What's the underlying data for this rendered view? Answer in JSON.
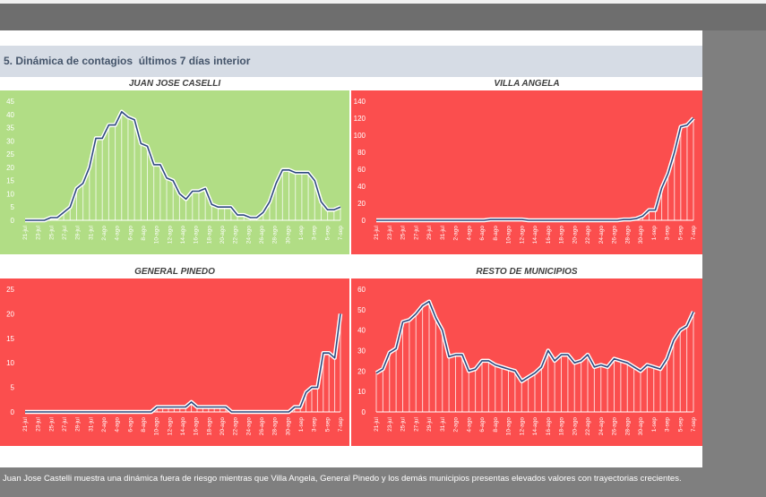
{
  "section_title": "5. Dinámica de contagios  últimos 7 días interior",
  "footer_text": "Juan Jose Castelli muestra una dinámica fuera de riesgo mientras que Villa Angela, General Pinedo y los demás municipios presentas elevados valores con trayectorias crecientes.",
  "colors": {
    "green_panel": "#b1dd85",
    "red_panel": "#fb4e4e",
    "line": "#2f4a7f",
    "line_glow": "#ffffff"
  },
  "chart_data": [
    {
      "type": "area",
      "title": "JUAN JOSE CASELLI",
      "background": "#b1dd85",
      "ylim": [
        0,
        45
      ],
      "yticks": [
        0,
        5,
        10,
        15,
        20,
        25,
        30,
        35,
        40,
        45
      ],
      "xticks": [
        "21-jul",
        "23-jul",
        "25-jul",
        "27-jul",
        "29-jul",
        "31-jul",
        "2-ago",
        "4-ago",
        "6-ago",
        "8-ago",
        "10-ago",
        "12-ago",
        "14-ago",
        "16-ago",
        "18-ago",
        "20-ago",
        "22-ago",
        "24-ago",
        "26-ago",
        "28-ago",
        "30-ago",
        "1-sep",
        "3-sep",
        "5-sep",
        "7-sep"
      ],
      "values": [
        0,
        0,
        0,
        0,
        1,
        1,
        3,
        5,
        12,
        14,
        20,
        31,
        31,
        36,
        36,
        41,
        39,
        38,
        29,
        28,
        21,
        21,
        16,
        15,
        10,
        8,
        11,
        11,
        12,
        6,
        5,
        5,
        5,
        2,
        2,
        1,
        1,
        3,
        7,
        14,
        19,
        19,
        18,
        18,
        18,
        15,
        7,
        4,
        4,
        5
      ]
    },
    {
      "type": "area",
      "title": "VILLA ANGELA",
      "background": "#fb4e4e",
      "ylim": [
        0,
        140
      ],
      "yticks": [
        0,
        20,
        40,
        60,
        80,
        100,
        120,
        140
      ],
      "xticks": [
        "21-jul",
        "23-jul",
        "25-jul",
        "27-jul",
        "29-jul",
        "31-jul",
        "2-ago",
        "4-ago",
        "6-ago",
        "8-ago",
        "10-ago",
        "12-ago",
        "14-ago",
        "16-ago",
        "18-ago",
        "20-ago",
        "22-ago",
        "24-ago",
        "26-ago",
        "28-ago",
        "30-ago",
        "1-sep",
        "3-sep",
        "5-sep",
        "7-sep"
      ],
      "values": [
        0,
        0,
        0,
        0,
        0,
        0,
        0,
        0,
        0,
        0,
        0,
        0,
        0,
        0,
        0,
        0,
        0,
        0,
        1,
        1,
        1,
        1,
        1,
        1,
        0,
        0,
        0,
        0,
        0,
        0,
        0,
        0,
        0,
        0,
        0,
        0,
        0,
        0,
        0,
        1,
        1,
        2,
        5,
        12,
        12,
        38,
        55,
        80,
        110,
        112,
        120
      ]
    },
    {
      "type": "area",
      "title": "GENERAL PINEDO",
      "background": "#fb4e4e",
      "ylim": [
        0,
        25
      ],
      "yticks": [
        0,
        5,
        10,
        15,
        20,
        25
      ],
      "xticks": [
        "21-jul",
        "23-jul",
        "25-jul",
        "27-jul",
        "29-jul",
        "31-jul",
        "2-ago",
        "4-ago",
        "6-ago",
        "8-ago",
        "10-ago",
        "12-ago",
        "14-ago",
        "16-ago",
        "18-ago",
        "20-ago",
        "22-ago",
        "24-ago",
        "26-ago",
        "28-ago",
        "30-ago",
        "1-sep",
        "3-sep",
        "5-sep",
        "7-sep"
      ],
      "values": [
        0,
        0,
        0,
        0,
        0,
        0,
        0,
        0,
        0,
        0,
        0,
        0,
        0,
        0,
        0,
        0,
        0,
        0,
        0,
        0,
        0,
        0,
        0,
        1,
        1,
        1,
        1,
        1,
        1,
        2,
        1,
        1,
        1,
        1,
        1,
        1,
        0,
        0,
        0,
        0,
        0,
        0,
        0,
        0,
        0,
        0,
        0,
        1,
        1,
        4,
        5,
        5,
        12,
        12,
        11,
        20
      ]
    },
    {
      "type": "area",
      "title": "RESTO DE MUNICIPIOS",
      "background": "#fb4e4e",
      "ylim": [
        0,
        60
      ],
      "yticks": [
        0,
        10,
        20,
        30,
        40,
        50,
        60
      ],
      "xticks": [
        "21-jul",
        "23-jul",
        "25-jul",
        "27-jul",
        "29-jul",
        "31-jul",
        "2-ago",
        "4-ago",
        "6-ago",
        "8-ago",
        "10-ago",
        "12-ago",
        "14-ago",
        "16-ago",
        "18-ago",
        "20-ago",
        "22-ago",
        "24-ago",
        "26-ago",
        "28-ago",
        "30-ago",
        "1-sep",
        "3-sep",
        "5-sep",
        "7-sep"
      ],
      "values": [
        19,
        21,
        29,
        31,
        44,
        45,
        48,
        52,
        54,
        46,
        40,
        27,
        28,
        28,
        20,
        21,
        25,
        25,
        23,
        22,
        21,
        20,
        15,
        17,
        19,
        22,
        30,
        25,
        28,
        28,
        24,
        25,
        28,
        22,
        23,
        22,
        26,
        25,
        24,
        22,
        20,
        23,
        22,
        21,
        26,
        35,
        40,
        42,
        49
      ]
    }
  ]
}
